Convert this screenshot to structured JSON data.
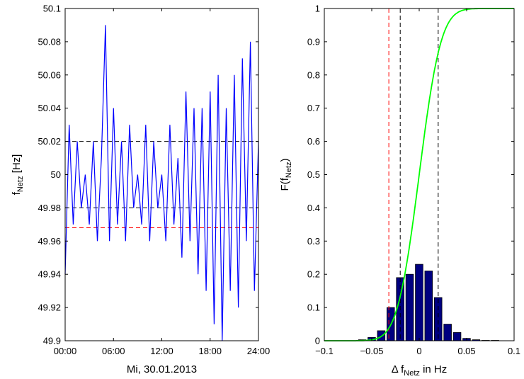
{
  "chart_data": [
    {
      "type": "line",
      "xlabel": "Mi, 30.01.2013",
      "ylabel": {
        "main": "f",
        "sub": "Netz",
        "suffix": " [Hz]"
      },
      "xlim": [
        0,
        24
      ],
      "ylim": [
        49.9,
        50.1
      ],
      "x_tick_values": [
        0,
        6,
        12,
        18,
        24
      ],
      "x_ticks": [
        "00:00",
        "06:00",
        "12:00",
        "18:00",
        "24:00"
      ],
      "y_tick_values": [
        49.9,
        49.92,
        49.94,
        49.96,
        49.98,
        50,
        50.02,
        50.04,
        50.06,
        50.08,
        50.1
      ],
      "y_ticks": [
        "49.9",
        "49.92",
        "49.94",
        "49.96",
        "49.98",
        "50",
        "50.02",
        "50.04",
        "50.06",
        "50.08",
        "50.1"
      ],
      "grid": false,
      "series": [
        {
          "color": "#0000ff",
          "x": [
            0,
            0.5,
            1,
            1.5,
            2,
            2.5,
            3,
            3.5,
            4,
            4.5,
            5,
            5.5,
            6,
            6.5,
            7,
            7.5,
            8,
            8.5,
            9,
            9.5,
            10,
            10.5,
            11,
            11.5,
            12,
            12.5,
            13,
            13.5,
            14,
            14.5,
            15,
            15.5,
            16,
            16.5,
            17,
            17.5,
            18,
            18.5,
            19,
            19.5,
            20,
            20.5,
            21,
            21.5,
            22,
            22.5,
            23,
            23.5,
            24
          ],
          "y": [
            49.94,
            50.03,
            49.97,
            50.02,
            49.98,
            50.0,
            49.97,
            50.02,
            49.96,
            50.01,
            50.09,
            49.96,
            50.04,
            49.97,
            50.02,
            49.96,
            50.03,
            49.98,
            50.0,
            49.97,
            50.03,
            49.96,
            50.02,
            49.98,
            50.0,
            49.96,
            50.03,
            49.97,
            50.01,
            49.95,
            50.05,
            49.96,
            50.04,
            49.94,
            50.04,
            49.93,
            50.05,
            49.91,
            50.06,
            49.9,
            50.04,
            49.93,
            50.06,
            49.92,
            50.07,
            49.96,
            50.08,
            49.93,
            50.02
          ]
        }
      ],
      "reference_lines": [
        {
          "y": 50.02,
          "color": "#000000",
          "style": "dashed"
        },
        {
          "y": 49.98,
          "color": "#000000",
          "style": "dashed"
        },
        {
          "y": 49.968,
          "color": "#ff0000",
          "style": "dashed"
        }
      ]
    },
    {
      "type": "bar",
      "xlabel": {
        "main": "Δ f",
        "sub": "Netz",
        "suffix": " in Hz"
      },
      "ylabel": {
        "main": "F(f",
        "sub": "Netz",
        "suffix": ")"
      },
      "xlim": [
        -0.1,
        0.1
      ],
      "ylim": [
        0,
        1
      ],
      "x_tick_values": [
        -0.1,
        -0.05,
        0,
        0.05,
        0.1
      ],
      "x_ticks": [
        "−0.1",
        "−0.05",
        "0",
        "0.05",
        "0.1"
      ],
      "y_tick_values": [
        0,
        0.1,
        0.2,
        0.3,
        0.4,
        0.5,
        0.6,
        0.7,
        0.8,
        0.9,
        1
      ],
      "y_ticks": [
        "0",
        "0.1",
        "0.2",
        "0.3",
        "0.4",
        "0.5",
        "0.6",
        "0.7",
        "0.8",
        "0.9",
        "1"
      ],
      "grid": false,
      "bars": {
        "color": "#000080",
        "x": [
          -0.06,
          -0.05,
          -0.04,
          -0.03,
          -0.02,
          -0.01,
          0,
          0.01,
          0.02,
          0.03,
          0.04,
          0.05,
          0.06,
          0.07,
          0.08
        ],
        "values": [
          0.003,
          0.01,
          0.03,
          0.1,
          0.19,
          0.2,
          0.23,
          0.21,
          0.13,
          0.05,
          0.025,
          0.007,
          0.003,
          0.001,
          0.001
        ]
      },
      "cdf_curve": {
        "color": "#00ff00",
        "mean": 0,
        "sigma": 0.018
      },
      "reference_lines": [
        {
          "x": -0.032,
          "color": "#ff0000",
          "style": "dashed"
        },
        {
          "x": -0.02,
          "color": "#000000",
          "style": "dashed"
        },
        {
          "x": 0.02,
          "color": "#000000",
          "style": "dashed"
        }
      ]
    }
  ]
}
